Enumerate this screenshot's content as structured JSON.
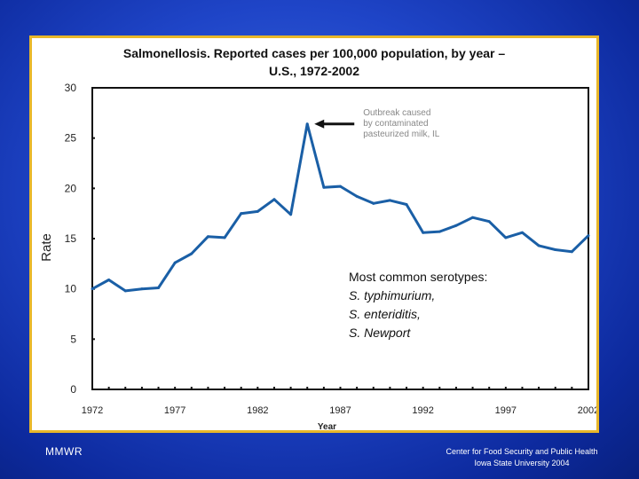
{
  "chart_data": {
    "type": "line",
    "title_line1": "Salmonellosis. Reported cases per 100,000 population, by year –",
    "title_line2": "U.S., 1972-2002",
    "xlabel": "Year",
    "ylabel": "Rate",
    "xlim": [
      1972,
      2002
    ],
    "ylim": [
      0,
      30
    ],
    "x_ticks": [
      1972,
      1977,
      1982,
      1987,
      1992,
      1997,
      2002
    ],
    "y_ticks": [
      0,
      5,
      10,
      15,
      20,
      25,
      30
    ],
    "series": [
      {
        "name": "Reported cases per 100,000",
        "color": "#1a5fa6",
        "x": [
          1972,
          1973,
          1974,
          1975,
          1976,
          1977,
          1978,
          1979,
          1980,
          1981,
          1982,
          1983,
          1984,
          1985,
          1986,
          1987,
          1988,
          1989,
          1990,
          1991,
          1992,
          1993,
          1994,
          1995,
          1996,
          1997,
          1998,
          1999,
          2000,
          2001,
          2002
        ],
        "y": [
          10.0,
          10.9,
          9.8,
          10.0,
          10.1,
          12.6,
          13.5,
          15.2,
          15.1,
          17.5,
          17.7,
          18.9,
          17.4,
          26.4,
          20.1,
          20.2,
          19.2,
          18.5,
          18.8,
          18.4,
          15.6,
          15.7,
          16.3,
          17.1,
          16.7,
          15.1,
          15.6,
          14.3,
          13.9,
          13.7,
          15.3
        ]
      }
    ],
    "annotations": [
      {
        "id": "outbreak",
        "lines": [
          "Outbreak caused",
          "by contaminated",
          "pasteurized milk, IL"
        ],
        "color": "#888888"
      },
      {
        "id": "serotypes",
        "lines": [
          "Most common serotypes:",
          "S. typhimurium,",
          "S. enteriditis,",
          "S. Newport"
        ],
        "color": "#111111"
      }
    ]
  },
  "footer": {
    "source": "MMWR",
    "credit_line1": "Center for Food Security and Public Health",
    "credit_line2": "Iowa State University 2004"
  },
  "colors": {
    "panel_border": "#e8b72a",
    "axis": "#111111"
  }
}
